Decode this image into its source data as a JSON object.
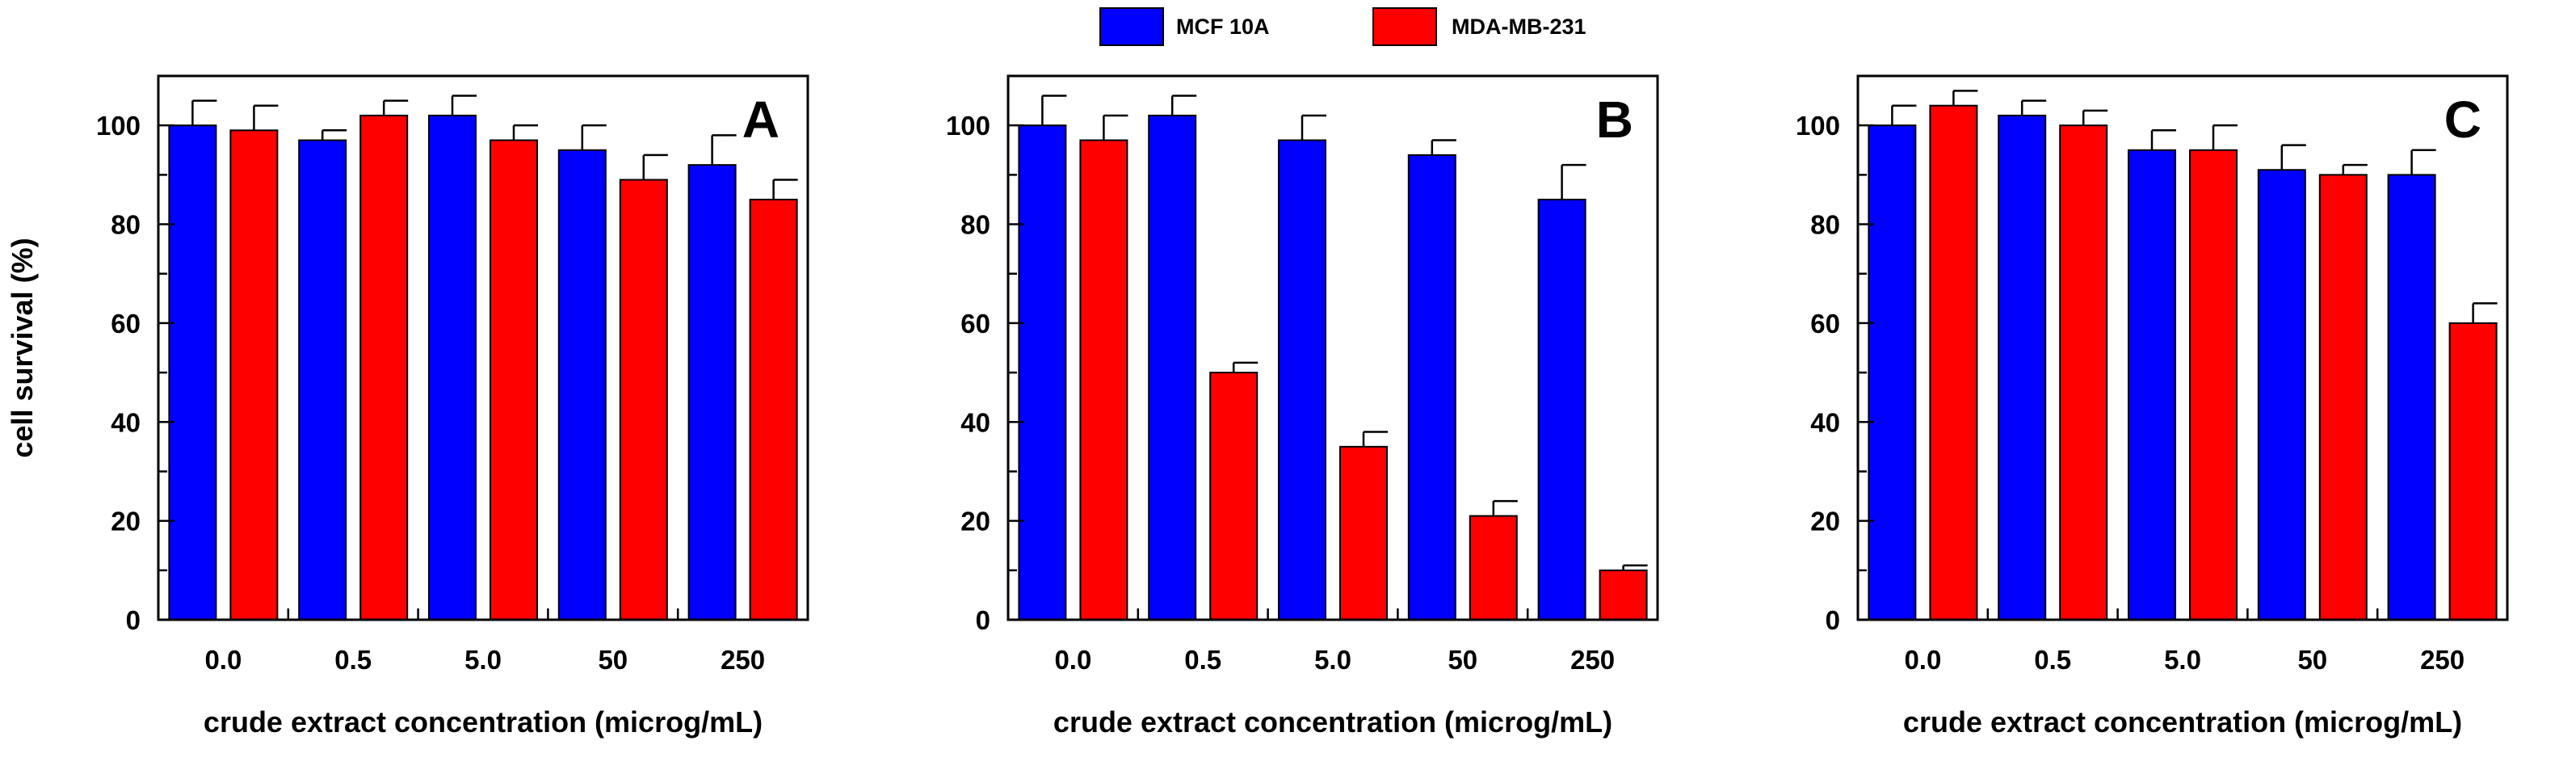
{
  "legend": {
    "entries": [
      {
        "label": "MCF 10A",
        "color": "#0000ff"
      },
      {
        "label": "MDA-MB-231",
        "color": "#ff0000"
      }
    ]
  },
  "chart_data": [
    {
      "type": "bar",
      "panel_label": "A",
      "categories": [
        "0.0",
        "0.5",
        "5.0",
        "50",
        "250"
      ],
      "series": [
        {
          "name": "MCF 10A",
          "color": "#0000ff",
          "values": [
            100,
            97,
            102,
            95,
            92
          ],
          "errors": [
            5,
            2,
            4,
            5,
            6
          ]
        },
        {
          "name": "MDA-MB-231",
          "color": "#ff0000",
          "values": [
            99,
            102,
            97,
            89,
            85
          ],
          "errors": [
            5,
            3,
            3,
            5,
            4
          ]
        }
      ],
      "xlabel": "crude extract concentration (microg/mL)",
      "ylabel": "cell survival (%)",
      "ylim": [
        0,
        110
      ],
      "yticks": [
        "0",
        "20",
        "40",
        "60",
        "80",
        "100"
      ]
    },
    {
      "type": "bar",
      "panel_label": "B",
      "categories": [
        "0.0",
        "0.5",
        "5.0",
        "50",
        "250"
      ],
      "series": [
        {
          "name": "MCF 10A",
          "color": "#0000ff",
          "values": [
            100,
            102,
            97,
            94,
            85
          ],
          "errors": [
            6,
            4,
            5,
            3,
            7
          ]
        },
        {
          "name": "MDA-MB-231",
          "color": "#ff0000",
          "values": [
            97,
            50,
            35,
            21,
            10
          ],
          "errors": [
            5,
            2,
            3,
            3,
            1
          ]
        }
      ],
      "xlabel": "crude extract concentration (microg/mL)",
      "ylabel": "",
      "ylim": [
        0,
        110
      ],
      "yticks": [
        "0",
        "20",
        "40",
        "60",
        "80",
        "100"
      ]
    },
    {
      "type": "bar",
      "panel_label": "C",
      "categories": [
        "0.0",
        "0.5",
        "5.0",
        "50",
        "250"
      ],
      "series": [
        {
          "name": "MCF 10A",
          "color": "#0000ff",
          "values": [
            100,
            102,
            95,
            91,
            90
          ],
          "errors": [
            4,
            3,
            4,
            5,
            5
          ]
        },
        {
          "name": "MDA-MB-231",
          "color": "#ff0000",
          "values": [
            104,
            100,
            95,
            90,
            60
          ],
          "errors": [
            3,
            3,
            5,
            2,
            4
          ]
        }
      ],
      "xlabel": "crude extract concentration (microg/mL)",
      "ylabel": "",
      "ylim": [
        0,
        110
      ],
      "yticks": [
        "0",
        "20",
        "40",
        "60",
        "80",
        "100"
      ]
    }
  ]
}
